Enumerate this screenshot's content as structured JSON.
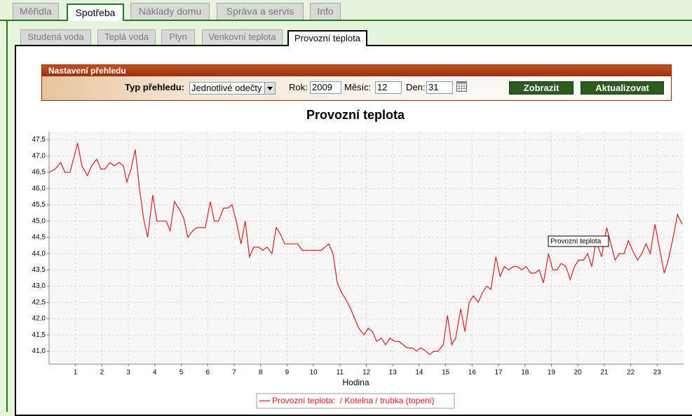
{
  "tabs": [
    "Měřidla",
    "Spotřeba",
    "Náklady domu",
    "Správa a servis",
    "Info"
  ],
  "subtabs": [
    "Studená voda",
    "Teplá voda",
    "Plyn",
    "Venkovní teplota",
    "Provozní teplota"
  ],
  "settings": {
    "title": "Nastavení přehledu",
    "type_label": "Typ přehledu:",
    "type_value": "Jednotlivé odečty",
    "year_label": "Rok:",
    "year": 2009,
    "month_label": "Měsíc:",
    "month": 12,
    "day_label": "Den:",
    "day": 31,
    "buttons": [
      "Zobrazit",
      "Aktualizovat"
    ]
  },
  "chart_data": {
    "type": "line",
    "title": "Provozní teplota",
    "x_label": "Hodina",
    "tooltip": "Provozní teplota",
    "grid": true,
    "xlim": [
      0,
      24
    ],
    "xticks": [
      1,
      2,
      3,
      4,
      5,
      6,
      7,
      8,
      9,
      10,
      11,
      12,
      13,
      14,
      15,
      16,
      17,
      18,
      19,
      20,
      21,
      22,
      23
    ],
    "ylim": [
      40.6,
      47.75
    ],
    "yticks": [
      {
        "value": 41,
        "label": "41,0"
      },
      {
        "value": 41.5,
        "label": "41,5"
      },
      {
        "value": 42,
        "label": "42,0"
      },
      {
        "value": 42.5,
        "label": "42,5"
      },
      {
        "value": 43,
        "label": "43,0"
      },
      {
        "value": 43.5,
        "label": "43,5"
      },
      {
        "value": 44,
        "label": "44,0"
      },
      {
        "value": 44.5,
        "label": "44,5"
      },
      {
        "value": 45,
        "label": "45,0"
      },
      {
        "value": 45.5,
        "label": "45,5"
      },
      {
        "value": 46,
        "label": "46,0"
      },
      {
        "value": 46.5,
        "label": "46,5"
      },
      {
        "value": 47,
        "label": "47,0"
      },
      {
        "value": 47.5,
        "label": "47,5"
      }
    ],
    "x": [
      0.02,
      0.23,
      0.44,
      0.6,
      0.79,
      0.92,
      1.08,
      1.24,
      1.45,
      1.61,
      1.8,
      1.96,
      2.11,
      2.3,
      2.46,
      2.65,
      2.81,
      2.94,
      3.1,
      3.26,
      3.42,
      3.57,
      3.73,
      3.92,
      4.08,
      4.43,
      4.58,
      4.74,
      4.9,
      5.09,
      5.25,
      5.43,
      5.59,
      5.91,
      6.1,
      6.25,
      6.41,
      6.6,
      6.76,
      6.92,
      7.08,
      7.26,
      7.42,
      7.58,
      7.74,
      7.93,
      8.09,
      8.24,
      8.43,
      8.59,
      8.75,
      8.91,
      9.41,
      9.57,
      10.29,
      10.58,
      10.74,
      10.9,
      11.06,
      11.22,
      11.41,
      11.56,
      11.72,
      11.91,
      12.07,
      12.23,
      12.39,
      12.57,
      12.73,
      12.89,
      13.08,
      13.24,
      13.39,
      13.55,
      13.74,
      13.9,
      14.06,
      14.25,
      14.4,
      14.56,
      14.72,
      14.91,
      15.07,
      15.23,
      15.38,
      15.57,
      15.73,
      15.89,
      16.05,
      16.23,
      16.39,
      16.55,
      16.71,
      16.9,
      17.06,
      17.22,
      17.38,
      17.56,
      17.72,
      17.88,
      18.04,
      18.22,
      18.38,
      18.54,
      18.7,
      18.89,
      19.05,
      19.21,
      19.37,
      19.55,
      19.71,
      19.87,
      20.03,
      20.22,
      20.37,
      20.53,
      20.69,
      20.9,
      21.09,
      21.25,
      21.41,
      21.57,
      21.75,
      21.91,
      22.07,
      22.26,
      22.42,
      22.58,
      22.74,
      22.92,
      23.08,
      23.27,
      23.42,
      23.58,
      23.77,
      23.95
    ],
    "series": [
      {
        "name": "Provozní teplota:  / Kotelna / trubka (topeni)",
        "color": "#d42020",
        "values": [
          46.5,
          46.6,
          46.8,
          46.5,
          46.5,
          46.9,
          47.4,
          46.7,
          46.4,
          46.7,
          46.9,
          46.6,
          46.6,
          46.8,
          46.7,
          46.8,
          46.7,
          46.2,
          46.6,
          47.2,
          46.0,
          45.1,
          44.5,
          45.8,
          45.0,
          45.0,
          44.7,
          45.6,
          45.4,
          45.1,
          44.5,
          44.7,
          44.8,
          44.8,
          45.6,
          45.0,
          45.0,
          45.4,
          45.4,
          45.5,
          45.0,
          44.3,
          45.0,
          43.9,
          44.2,
          44.2,
          44.1,
          44.2,
          44.0,
          44.8,
          44.6,
          44.3,
          44.3,
          44.1,
          44.1,
          44.3,
          44.0,
          43.1,
          42.8,
          42.6,
          42.3,
          42.0,
          41.7,
          41.5,
          41.7,
          41.6,
          41.3,
          41.4,
          41.2,
          41.4,
          41.3,
          41.3,
          41.2,
          41.1,
          41.1,
          41.0,
          41.1,
          41.0,
          40.9,
          41.0,
          41.0,
          41.2,
          42.1,
          41.2,
          41.4,
          42.3,
          41.6,
          42.5,
          42.7,
          42.5,
          42.8,
          43.0,
          42.9,
          43.9,
          43.3,
          43.6,
          43.5,
          43.6,
          43.6,
          43.5,
          43.6,
          43.4,
          43.4,
          43.5,
          43.1,
          44.0,
          43.5,
          43.5,
          43.7,
          43.6,
          43.2,
          43.6,
          43.8,
          43.8,
          44.0,
          43.6,
          44.4,
          43.9,
          44.8,
          44.3,
          43.8,
          44.0,
          44.0,
          44.4,
          44.1,
          43.8,
          44.0,
          44.3,
          44.0,
          44.9,
          44.2,
          43.4,
          43.8,
          44.4,
          45.2,
          44.9
        ]
      }
    ]
  }
}
